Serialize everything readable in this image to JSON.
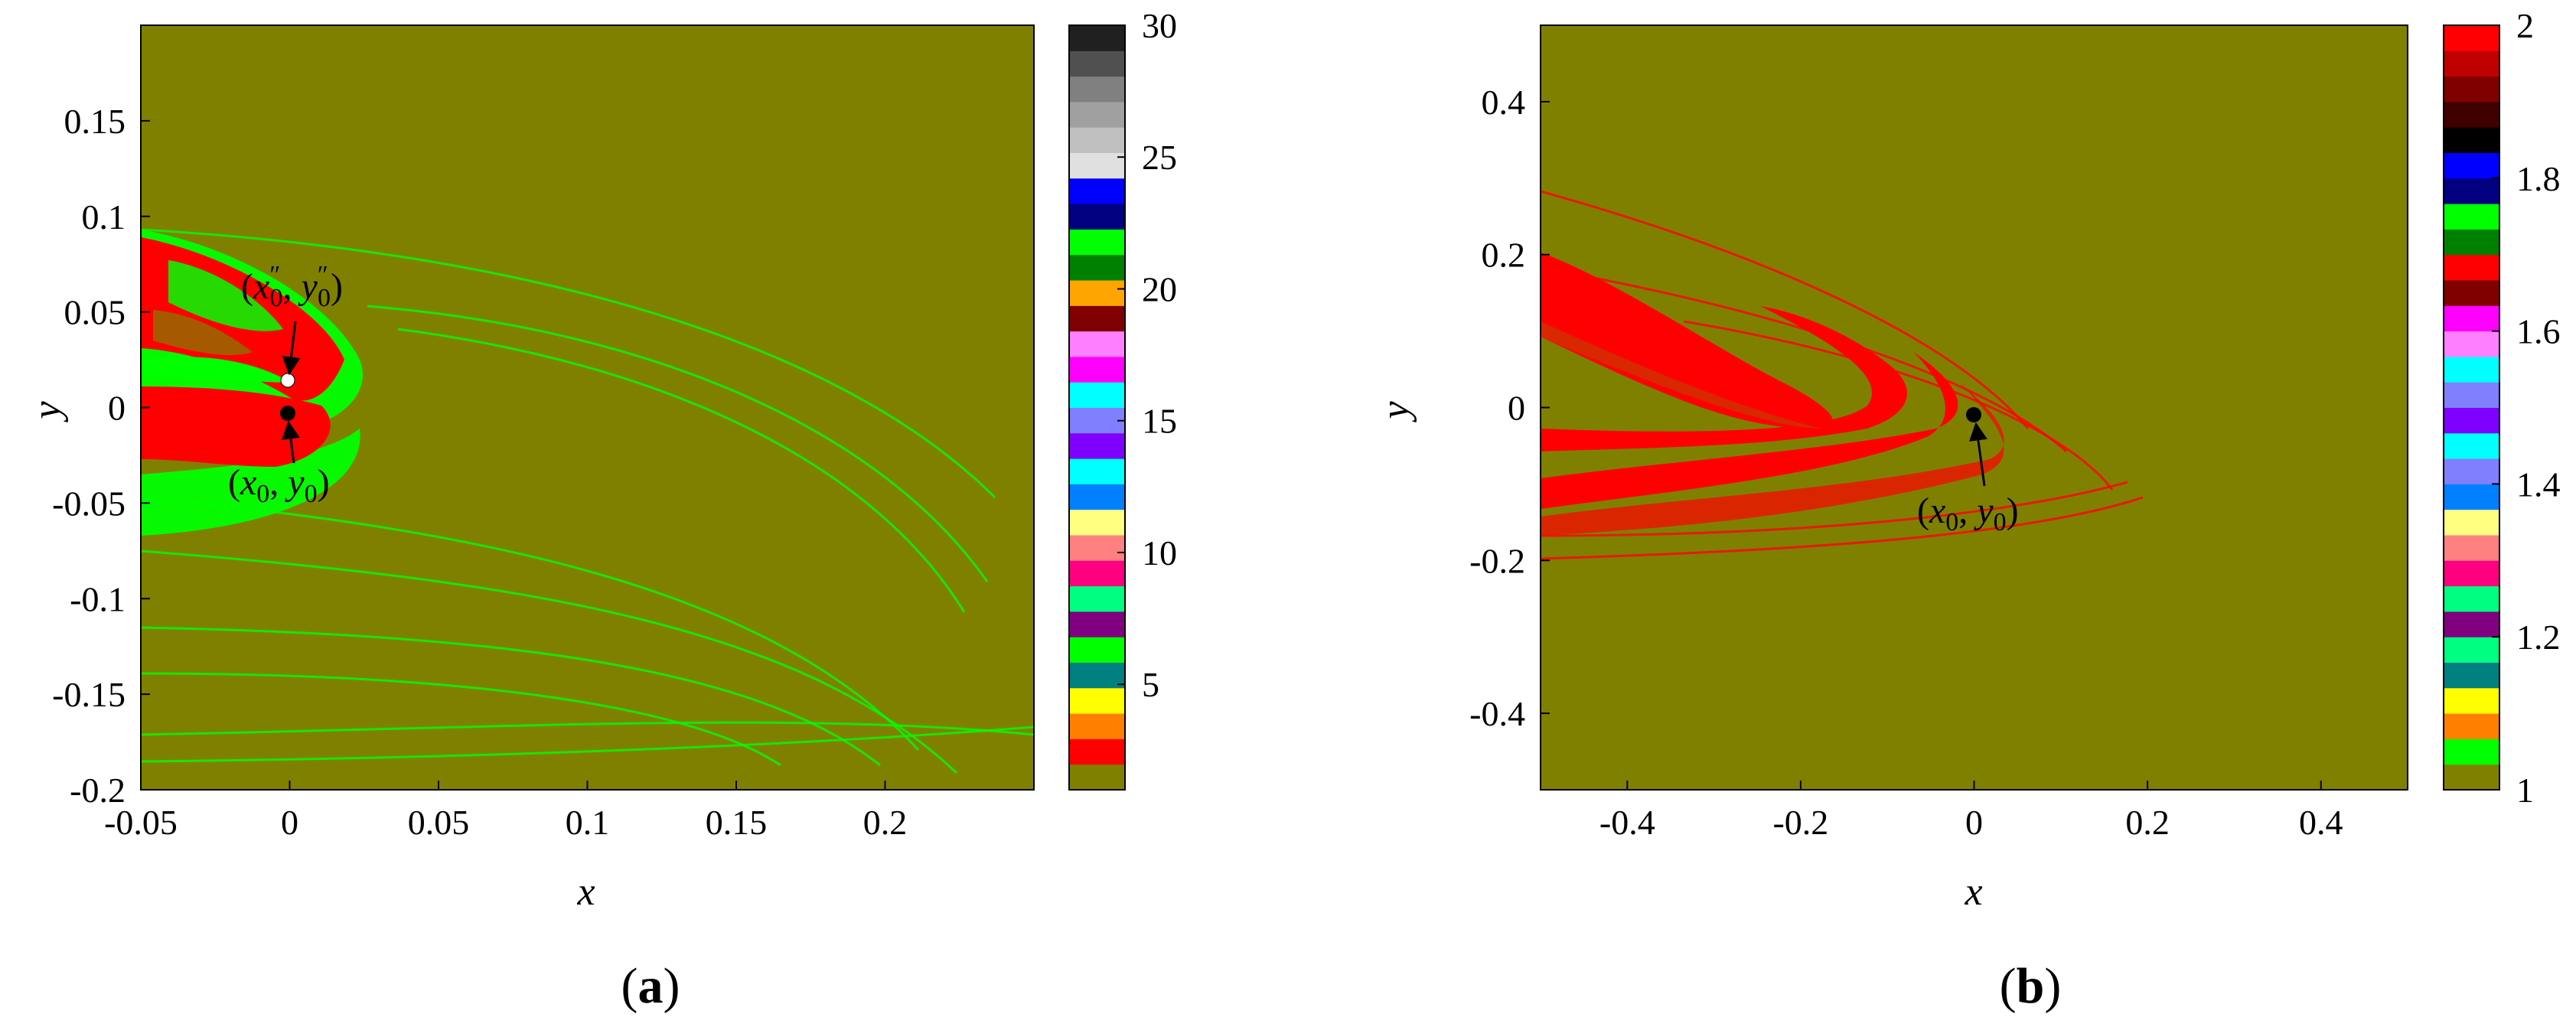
{
  "chart_data": [
    {
      "type": "heatmap",
      "panel": "(a)",
      "panel_letter": "a",
      "xlabel": "x",
      "ylabel": "y",
      "xlim": [
        -0.05,
        0.25
      ],
      "ylim": [
        -0.2,
        0.2
      ],
      "x_ticks": [
        -0.05,
        0,
        0.05,
        0.1,
        0.15,
        0.2
      ],
      "x_tick_labels": [
        "-0.05",
        "0",
        "0.05",
        "0.1",
        "0.15",
        "0.2"
      ],
      "y_ticks": [
        -0.2,
        -0.15,
        -0.1,
        -0.05,
        0,
        0.05,
        0.1,
        0.15
      ],
      "y_tick_labels": [
        "-0.2",
        "-0.15",
        "-0.1",
        "-0.05",
        "0",
        "0.05",
        "0.1",
        "0.15"
      ],
      "background_color": "#808000",
      "colorbar": {
        "min": 1,
        "max": 30,
        "ticks": [
          5,
          10,
          15,
          20,
          25,
          30
        ],
        "tick_labels": [
          "5",
          "10",
          "15",
          "20",
          "25",
          "30"
        ],
        "colors": [
          "#808000",
          "#ff0000",
          "#ff8000",
          "#ffff00",
          "#008080",
          "#00ff00",
          "#800080",
          "#00ff80",
          "#ff0080",
          "#ff8080",
          "#ffff80",
          "#0080ff",
          "#00ffff",
          "#8000ff",
          "#8080ff",
          "#00ffff",
          "#ff00ff",
          "#ff80ff",
          "#800000",
          "#ffa500",
          "#008000",
          "#00ff00",
          "#000080",
          "#0000ff",
          "#e0e0e0",
          "#c0c0c0",
          "#a0a0a0",
          "#808080",
          "#505050",
          "#202020"
        ]
      },
      "annotations": [
        {
          "label": "(x0'', y0'')",
          "x": 0.0,
          "y": 0.011,
          "marker_color": "#ffffff"
        },
        {
          "label": "(x0, y0)",
          "x": 0.0,
          "y": -0.008,
          "marker_color": "#000000"
        }
      ]
    },
    {
      "type": "heatmap",
      "panel": "(b)",
      "panel_letter": "b",
      "xlabel": "x",
      "ylabel": "y",
      "xlim": [
        -0.5,
        0.5
      ],
      "ylim": [
        -0.5,
        0.5
      ],
      "x_ticks": [
        -0.4,
        -0.2,
        0,
        0.2,
        0.4
      ],
      "x_tick_labels": [
        "-0.4",
        "-0.2",
        "0",
        "0.2",
        "0.4"
      ],
      "y_ticks": [
        -0.4,
        -0.2,
        0,
        0.2,
        0.4
      ],
      "y_tick_labels": [
        "-0.4",
        "-0.2",
        "0",
        "0.2",
        "0.4"
      ],
      "background_color": "#808000",
      "colorbar": {
        "min": 1,
        "max": 2,
        "ticks": [
          1,
          1.2,
          1.4,
          1.6,
          1.8,
          2
        ],
        "tick_labels": [
          "1",
          "1.2",
          "1.4",
          "1.6",
          "1.8",
          "2"
        ],
        "colors": [
          "#808000",
          "#00ff00",
          "#ff8000",
          "#ffff00",
          "#008080",
          "#00ff80",
          "#800080",
          "#00ff80",
          "#ff0080",
          "#ff8080",
          "#ffff80",
          "#0080ff",
          "#8080ff",
          "#00ffff",
          "#8000ff",
          "#8080ff",
          "#00ffff",
          "#ff80ff",
          "#ff00ff",
          "#800000",
          "#ff0000",
          "#008000",
          "#00ff00",
          "#000080",
          "#0000ff",
          "#000000",
          "#400000",
          "#800000",
          "#c00000",
          "#ff0000"
        ]
      },
      "annotations": [
        {
          "label": "(x0, y0)",
          "x": 0.0,
          "y": -0.01,
          "marker_color": "#000000"
        }
      ]
    }
  ]
}
